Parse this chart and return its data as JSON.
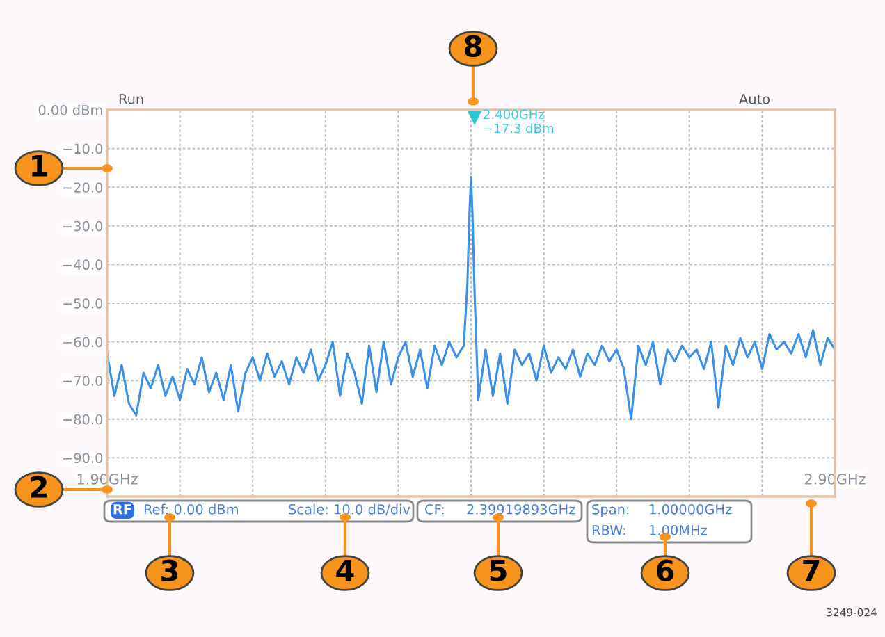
{
  "chart_data": {
    "type": "line",
    "x": [
      1.9,
      1.91,
      1.92,
      1.93,
      1.94,
      1.95,
      1.96,
      1.97,
      1.98,
      1.99,
      2.0,
      2.01,
      2.02,
      2.03,
      2.04,
      2.05,
      2.06,
      2.07,
      2.08,
      2.09,
      2.1,
      2.11,
      2.12,
      2.13,
      2.14,
      2.15,
      2.16,
      2.17,
      2.18,
      2.19,
      2.2,
      2.21,
      2.22,
      2.23,
      2.24,
      2.25,
      2.26,
      2.27,
      2.28,
      2.29,
      2.3,
      2.31,
      2.32,
      2.33,
      2.34,
      2.35,
      2.36,
      2.37,
      2.38,
      2.39,
      2.395,
      2.398,
      2.4,
      2.402,
      2.405,
      2.41,
      2.42,
      2.43,
      2.44,
      2.45,
      2.46,
      2.47,
      2.48,
      2.49,
      2.5,
      2.51,
      2.52,
      2.53,
      2.54,
      2.55,
      2.56,
      2.57,
      2.58,
      2.59,
      2.6,
      2.61,
      2.62,
      2.63,
      2.64,
      2.65,
      2.66,
      2.67,
      2.68,
      2.69,
      2.7,
      2.71,
      2.72,
      2.73,
      2.74,
      2.75,
      2.76,
      2.77,
      2.78,
      2.79,
      2.8,
      2.81,
      2.82,
      2.83,
      2.84,
      2.85,
      2.86,
      2.87,
      2.88,
      2.89,
      2.9
    ],
    "series": [
      {
        "color": "#3a8fe8",
        "values": [
          -63,
          -74,
          -66,
          -76,
          -79,
          -68,
          -72,
          -66,
          -74,
          -69,
          -75,
          -67,
          -71,
          -64,
          -73,
          -68,
          -75,
          -66,
          -78,
          -68,
          -64,
          -70,
          -63,
          -69,
          -65,
          -71,
          -64,
          -68,
          -62,
          -70,
          -66,
          -60,
          -74,
          -63,
          -68,
          -76,
          -61,
          -73,
          -60,
          -71,
          -64,
          -60,
          -69,
          -62,
          -72,
          -61,
          -66,
          -60,
          -64,
          -61,
          -45,
          -26,
          -17.3,
          -27,
          -48,
          -75,
          -62,
          -74,
          -63,
          -76,
          -62,
          -66,
          -63,
          -70,
          -61,
          -68,
          -64,
          -67,
          -62,
          -69,
          -63,
          -66,
          -61,
          -65,
          -62,
          -67,
          -80,
          -61,
          -66,
          -60,
          -71,
          -62,
          -65,
          -61,
          -64,
          -62,
          -67,
          -60,
          -77,
          -61,
          -66,
          -59,
          -64,
          -60,
          -67,
          -58,
          -62,
          -60,
          -63,
          -58,
          -64,
          -57,
          -66,
          -59,
          -62
        ]
      }
    ],
    "xlim": [
      1.9,
      2.9
    ],
    "xticks": [
      {
        "value": 1.9,
        "label": "1.90GHz"
      },
      {
        "value": 2.0,
        "label": null
      },
      {
        "value": 2.1,
        "label": null
      },
      {
        "value": 2.2,
        "label": null
      },
      {
        "value": 2.3,
        "label": null
      },
      {
        "value": 2.4,
        "label": null
      },
      {
        "value": 2.5,
        "label": null
      },
      {
        "value": 2.6,
        "label": null
      },
      {
        "value": 2.7,
        "label": null
      },
      {
        "value": 2.8,
        "label": null
      },
      {
        "value": 2.9,
        "label": "2.90GHz"
      }
    ],
    "ylim": [
      -100,
      0
    ],
    "yticks": [
      {
        "value": 0,
        "label": "0.00 dBm"
      },
      {
        "value": -10,
        "label": "−10.0"
      },
      {
        "value": -20,
        "label": "−20.0"
      },
      {
        "value": -30,
        "label": "−30.0"
      },
      {
        "value": -40,
        "label": "−40.0"
      },
      {
        "value": -50,
        "label": "−50.0"
      },
      {
        "value": -60,
        "label": "−60.0"
      },
      {
        "value": -70,
        "label": "−70.0"
      },
      {
        "value": -80,
        "label": "−80.0"
      },
      {
        "value": -90,
        "label": "−90.0"
      },
      {
        "value": -100,
        "label": null
      }
    ],
    "grid": true,
    "marker": "none",
    "line_style": "solid",
    "annotations": [
      "Run",
      "Auto",
      "2.400GHz\n−17.3 dBm",
      "RF",
      "Ref: 0.00 dBm",
      "Scale: 10.0 dB/div",
      "CF:",
      "2.39919893GHz",
      "Span:",
      "1.00000GHz",
      "RBW:",
      "1.00MHz",
      "1",
      "2",
      "3",
      "4",
      "5",
      "6",
      "7",
      "8",
      "3249-024"
    ]
  }
}
